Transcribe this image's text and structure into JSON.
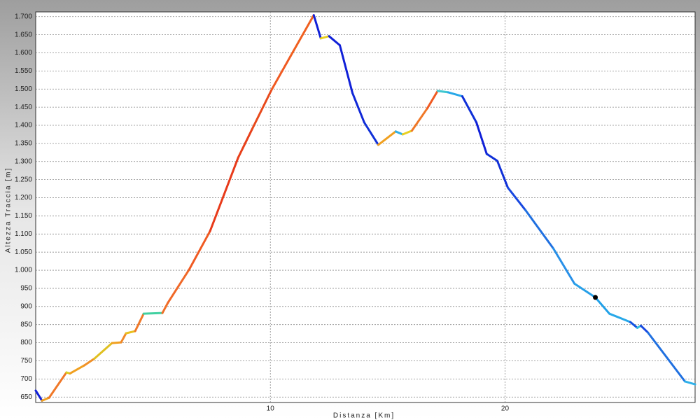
{
  "chart_data": {
    "type": "line",
    "xlabel": "Distanza [Km]",
    "ylabel": "Altezza Traccia [m]",
    "xlim": [
      0,
      28.1
    ],
    "ylim": [
      635,
      1713
    ],
    "xticks": [
      10,
      20
    ],
    "yticks": [
      650,
      700,
      750,
      800,
      850,
      900,
      950,
      {
        "value": 1000,
        "label": "1.000"
      },
      {
        "value": 1050,
        "label": "1.050"
      },
      {
        "value": 1100,
        "label": "1.100"
      },
      {
        "value": 1150,
        "label": "1.150"
      },
      {
        "value": 1200,
        "label": "1.200"
      },
      {
        "value": 1250,
        "label": "1.250"
      },
      {
        "value": 1300,
        "label": "1.300"
      },
      {
        "value": 1350,
        "label": "1.350"
      },
      {
        "value": 1400,
        "label": "1.400"
      },
      {
        "value": 1450,
        "label": "1.450"
      },
      {
        "value": 1500,
        "label": "1.500"
      },
      {
        "value": 1550,
        "label": "1.550"
      },
      {
        "value": 1600,
        "label": "1.600"
      },
      {
        "value": 1650,
        "label": "1.650"
      },
      {
        "value": 1700,
        "label": "1.700"
      }
    ],
    "grid": true,
    "x": [
      0,
      0.27,
      0.57,
      1.31,
      1.46,
      2.06,
      2.5,
      3.25,
      3.64,
      3.85,
      4.24,
      4.6,
      5.4,
      5.64,
      6.54,
      7.43,
      8.63,
      9.22,
      10.06,
      10.87,
      11.85,
      12.15,
      12.5,
      12.96,
      13.5,
      14.0,
      14.6,
      15.34,
      15.64,
      16.03,
      16.69,
      17.13,
      17.58,
      18.18,
      18.78,
      19.22,
      19.67,
      20.12,
      20.87,
      22.06,
      22.96,
      23.85,
      24.45,
      25.34,
      25.64,
      25.79,
      26.09,
      27.67,
      28.1
    ],
    "series": [
      {
        "values": [
          668,
          640,
          648,
          718,
          715,
          737,
          756,
          799,
          801,
          826,
          832,
          880,
          882,
          911,
          1002,
          1108,
          1311,
          1389,
          1499,
          1592,
          1704,
          1640,
          1646,
          1621,
          1489,
          1408,
          1346,
          1383,
          1375,
          1385,
          1447,
          1495,
          1491,
          1480,
          1408,
          1321,
          1302,
          1228,
          1166,
          1060,
          963,
          925,
          880,
          857,
          841,
          847,
          828,
          693,
          685
        ],
        "segment_colors": [
          "#1020d8",
          "#f0a020",
          "#f07828",
          "#d8d020",
          "#f0a020",
          "#f09028",
          "#e0c020",
          "#f0a020",
          "#f08828",
          "#e8c020",
          "#f07828",
          "#40d0a0",
          "#f07028",
          "#f06828",
          "#f05a22",
          "#e83a1a",
          "#e8401a",
          "#e84a1c",
          "#f05a22",
          "#f06020",
          "#1020d8",
          "#e8d020",
          "#1020d8",
          "#1020d8",
          "#1028d8",
          "#1030d8",
          "#f0a020",
          "#30b0e8",
          "#e8d020",
          "#f07828",
          "#f05a22",
          "#40c8d0",
          "#28a8e8",
          "#1030d8",
          "#1020d8",
          "#1030d8",
          "#1030d8",
          "#1848e0",
          "#2070e0",
          "#2890e8",
          "#28a0e8",
          "#20a0e8",
          "#28a8e8",
          "#1050e0",
          "#30c0e0",
          "#1848e0",
          "#2070e0",
          "#30b0e8"
        ]
      }
    ],
    "marker": {
      "x": 23.85,
      "y": 925,
      "color": "#000000"
    }
  }
}
